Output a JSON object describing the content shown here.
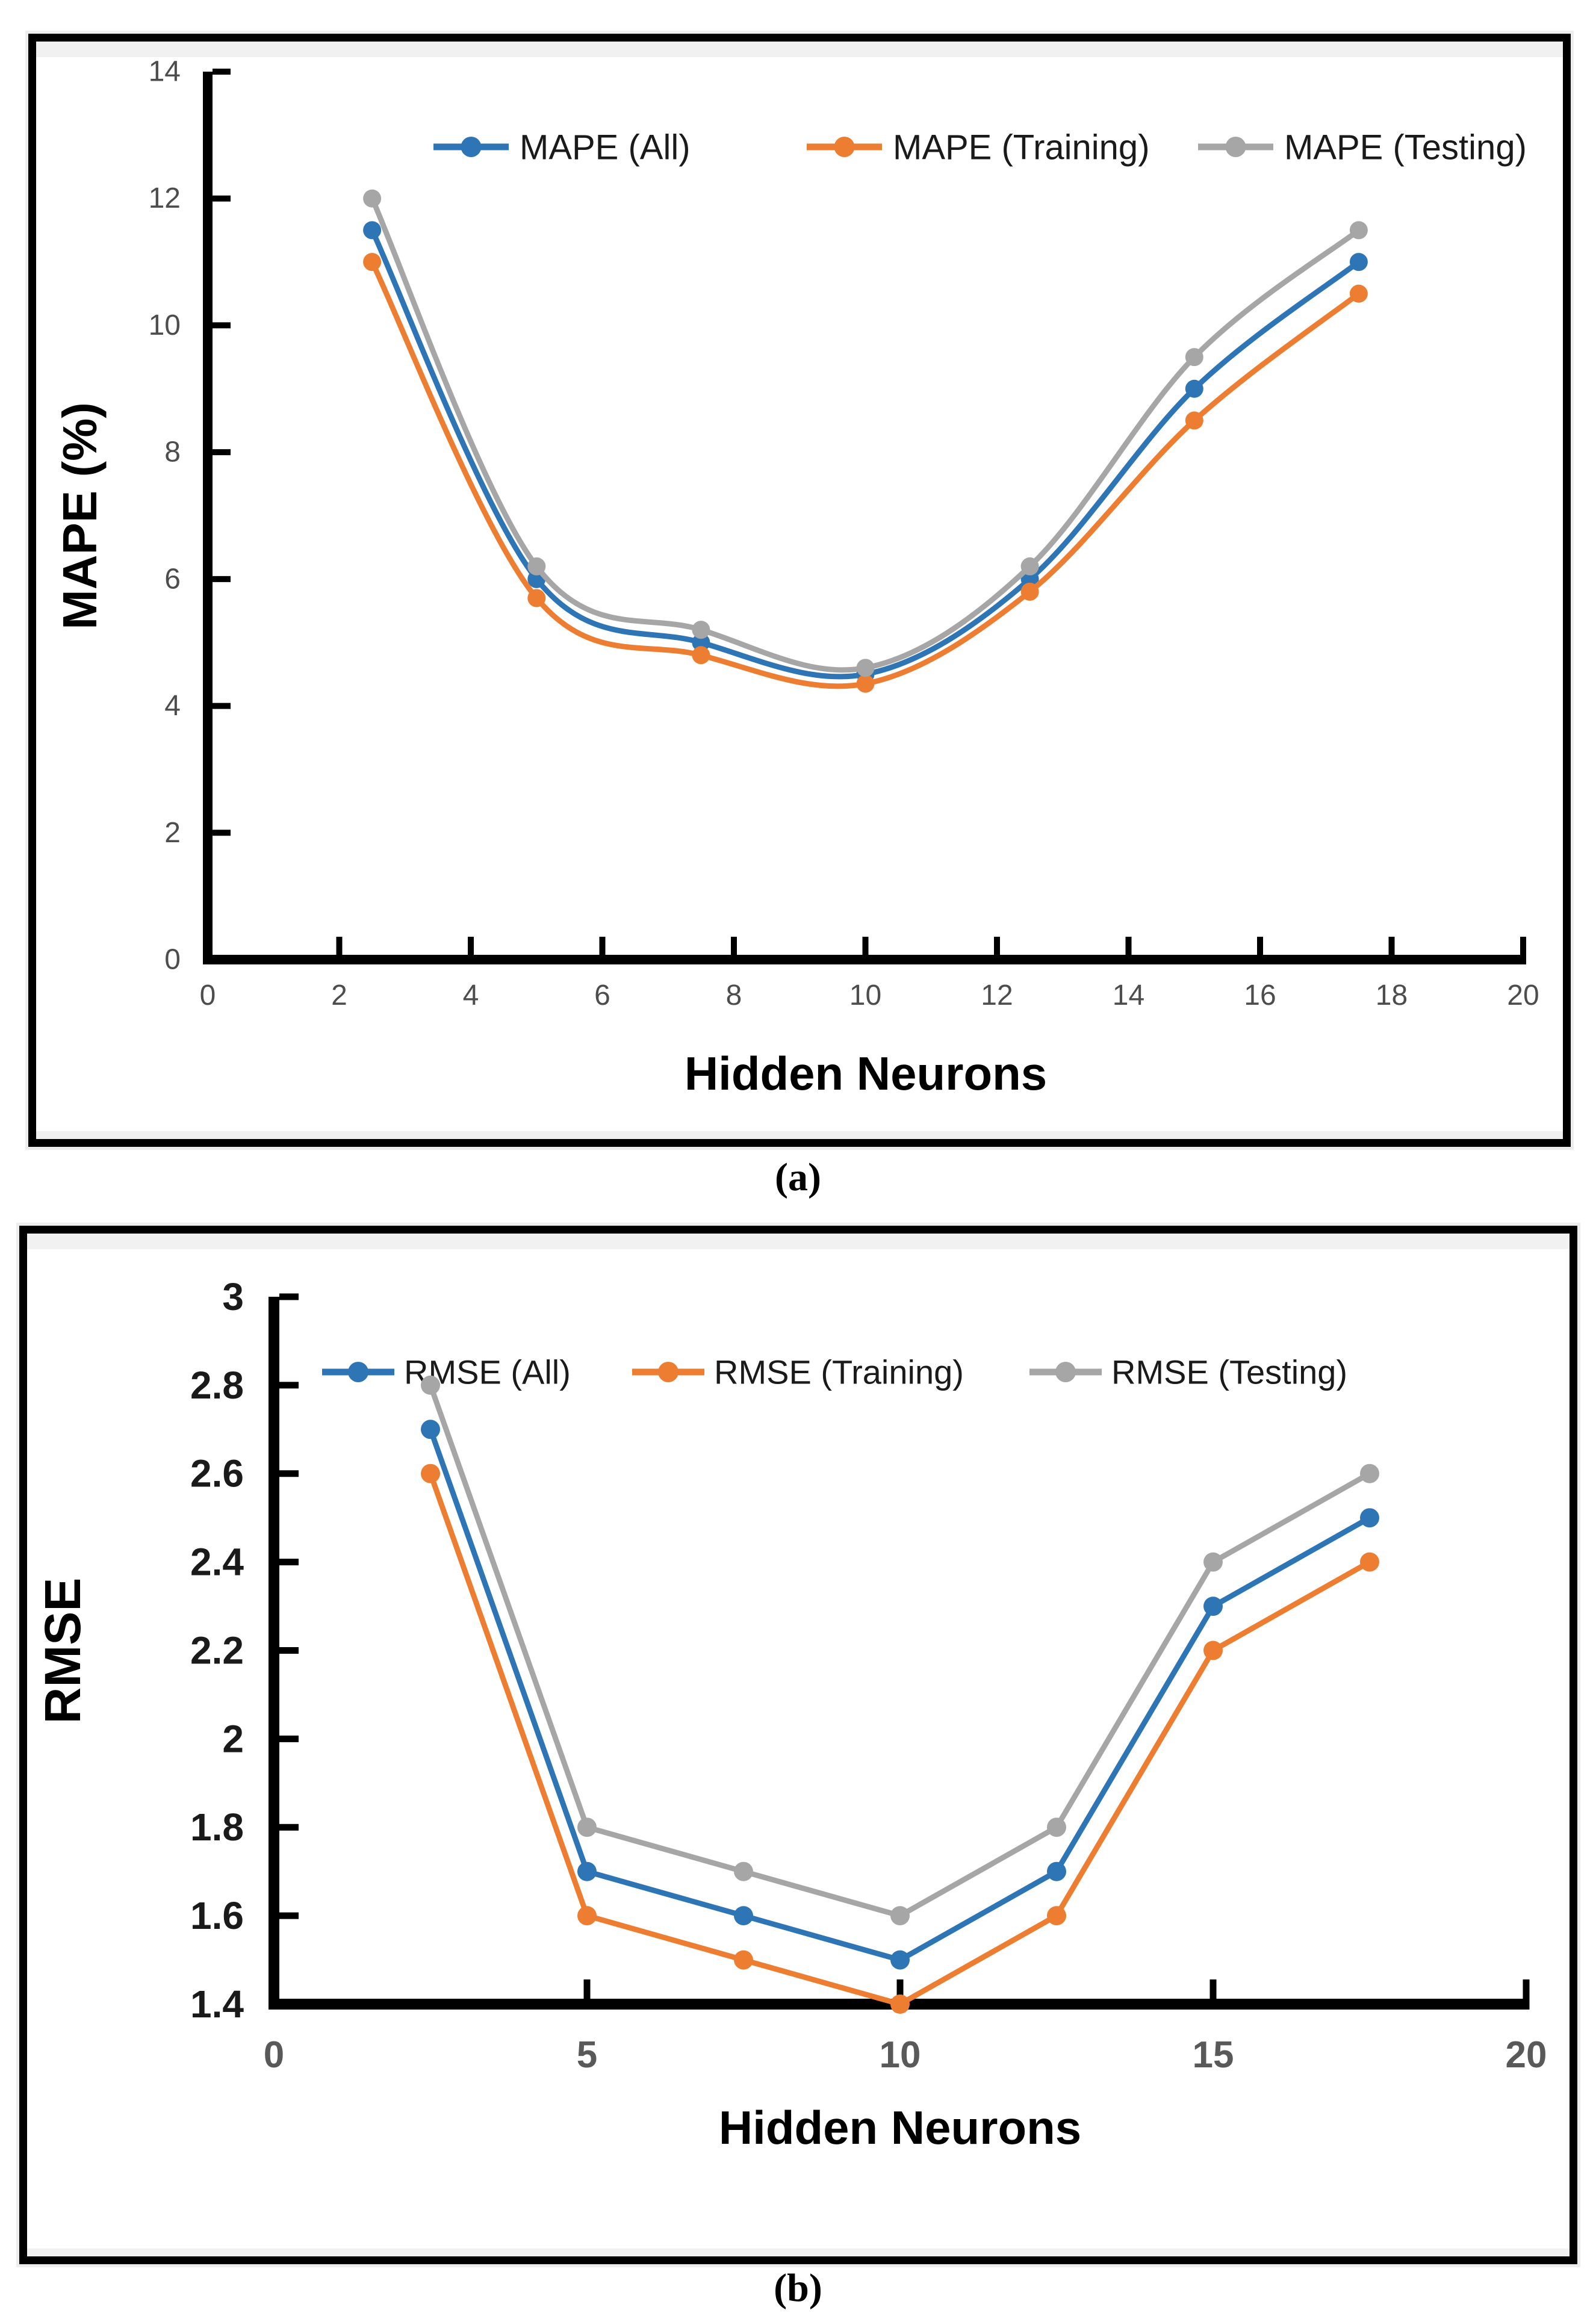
{
  "figure": {
    "captions": {
      "a": "(a)",
      "b": "(b)"
    }
  },
  "chart_data": [
    {
      "id": "a",
      "type": "line",
      "x": [
        2.5,
        5,
        7.5,
        10,
        12.5,
        15,
        17.5
      ],
      "series": [
        {
          "name": "MAPE (All)",
          "color": "#2E75B6",
          "values": [
            11.5,
            6.0,
            5.0,
            4.5,
            6.0,
            9.0,
            11.0
          ]
        },
        {
          "name": "MAPE (Training)",
          "color": "#ED7D31",
          "values": [
            11.0,
            5.7,
            4.8,
            4.35,
            5.8,
            8.5,
            10.5
          ]
        },
        {
          "name": "MAPE (Testing)",
          "color": "#A6A6A6",
          "values": [
            12.0,
            6.2,
            5.2,
            4.6,
            6.2,
            9.5,
            11.5
          ]
        }
      ],
      "xlabel": "Hidden Neurons",
      "ylabel": "MAPE (%)",
      "xlim": [
        0,
        20
      ],
      "ylim": [
        0,
        14
      ],
      "xticks": [
        0,
        2,
        4,
        6,
        8,
        10,
        12,
        14,
        16,
        18,
        20
      ],
      "yticks": [
        0,
        2,
        4,
        6,
        8,
        10,
        12,
        14
      ],
      "smooth": true,
      "grid": false,
      "legend_position": "top-center"
    },
    {
      "id": "b",
      "type": "line",
      "x": [
        2.5,
        5,
        7.5,
        10,
        12.5,
        15,
        17.5
      ],
      "series": [
        {
          "name": "RMSE (All)",
          "color": "#2E75B6",
          "values": [
            2.7,
            1.7,
            1.6,
            1.5,
            1.7,
            2.3,
            2.5
          ]
        },
        {
          "name": "RMSE (Training)",
          "color": "#ED7D31",
          "values": [
            2.6,
            1.6,
            1.5,
            1.4,
            1.6,
            2.2,
            2.4
          ]
        },
        {
          "name": "RMSE (Testing)",
          "color": "#A6A6A6",
          "values": [
            2.8,
            1.8,
            1.7,
            1.6,
            1.8,
            2.4,
            2.6
          ]
        }
      ],
      "xlabel": "Hidden Neurons",
      "ylabel": "RMSE",
      "xlim": [
        0,
        20
      ],
      "ylim": [
        1.4,
        3
      ],
      "xticks": [
        0,
        5,
        10,
        15,
        20
      ],
      "yticks": [
        1.4,
        1.6,
        1.8,
        2,
        2.2,
        2.4,
        2.6,
        2.8,
        3
      ],
      "smooth": false,
      "grid": false,
      "legend_position": "top-center"
    }
  ]
}
